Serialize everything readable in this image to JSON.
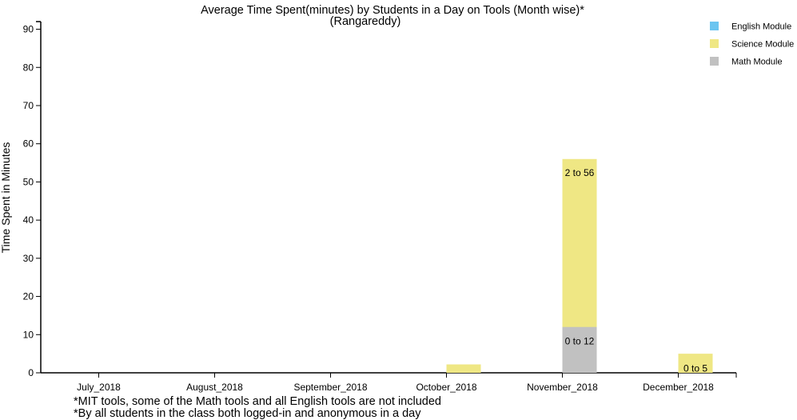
{
  "chart_data": {
    "type": "bar",
    "title_line1": "Average Time Spent(minutes) by Students in a Day on Tools (Month wise)*",
    "title_line2": "(Rangareddy)",
    "ylabel": "Time Spent in Minutes",
    "xlabel": "",
    "ylim": [
      0,
      92
    ],
    "yticks": [
      0,
      10,
      20,
      30,
      40,
      50,
      60,
      70,
      80,
      90
    ],
    "categories": [
      "July_2018",
      "August_2018",
      "September_2018",
      "October_2018",
      "November_2018",
      "December_2018"
    ],
    "series": [
      {
        "name": "English Module",
        "color": "#6cc5f0",
        "bars": [
          null,
          null,
          null,
          null,
          null,
          null
        ]
      },
      {
        "name": "Science Module",
        "color": "#efe784",
        "bars": [
          null,
          null,
          null,
          [
            0,
            2.2
          ],
          [
            2,
            56
          ],
          [
            0,
            5
          ]
        ]
      },
      {
        "name": "Math Module",
        "color": "#c1c1c1",
        "bars": [
          null,
          null,
          null,
          null,
          [
            0,
            12
          ],
          null
        ]
      }
    ],
    "bar_labels": [
      {
        "series": 1,
        "category": 4,
        "text": "2 to 56"
      },
      {
        "series": 2,
        "category": 4,
        "text": "0 to 12"
      },
      {
        "series": 1,
        "category": 5,
        "text": "0 to 5"
      }
    ],
    "legend_position": "top-right",
    "grid": false
  },
  "footnotes": [
    "*MIT tools, some of the Math tools and all English tools are not included",
    "*By all students in the class both logged-in and anonymous in a day"
  ]
}
